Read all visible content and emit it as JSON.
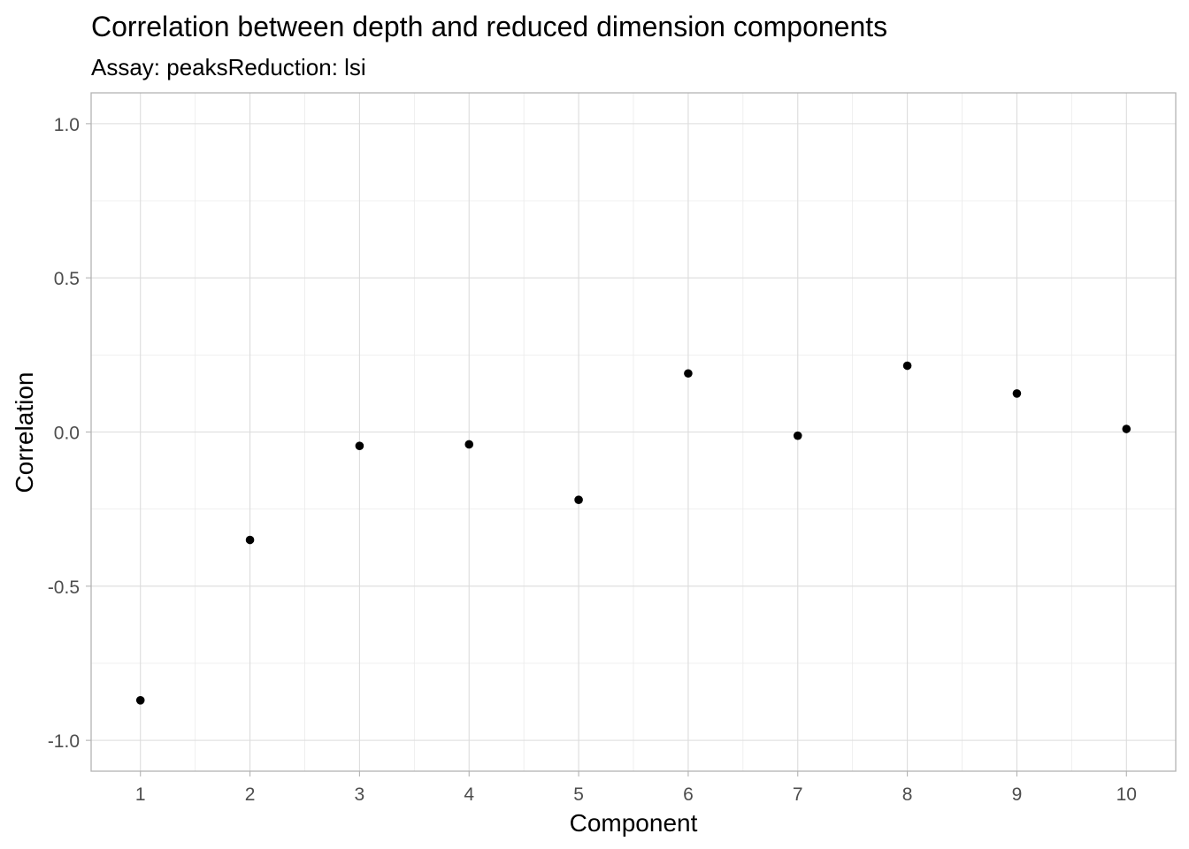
{
  "chart_data": {
    "type": "scatter",
    "title": "Correlation between depth and reduced dimension components",
    "subtitle": "Assay: peaksReduction: lsi",
    "xlabel": "Component",
    "ylabel": "Correlation",
    "x": [
      1,
      2,
      3,
      4,
      5,
      6,
      7,
      8,
      9,
      10
    ],
    "y": [
      -0.87,
      -0.35,
      -0.045,
      -0.04,
      -0.22,
      0.19,
      -0.012,
      0.215,
      0.125,
      0.01
    ],
    "xlim": [
      0.55,
      10.45
    ],
    "ylim": [
      -1.1,
      1.1
    ],
    "x_ticks": [
      1,
      2,
      3,
      4,
      5,
      6,
      7,
      8,
      9,
      10
    ],
    "x_tick_labels": [
      "1",
      "2",
      "3",
      "4",
      "5",
      "6",
      "7",
      "8",
      "9",
      "10"
    ],
    "y_ticks": [
      -1.0,
      -0.5,
      0.0,
      0.5,
      1.0
    ],
    "y_tick_labels": [
      "-1.0",
      "-0.5",
      "0.0",
      "0.5",
      "1.0"
    ],
    "grid": true,
    "legend": "none",
    "colors": {
      "point": "#000000",
      "grid_major": "#dcdcdc",
      "grid_minor": "#ebebeb",
      "border": "#b3b3b3",
      "tick_text": "#4d4d4d"
    }
  }
}
